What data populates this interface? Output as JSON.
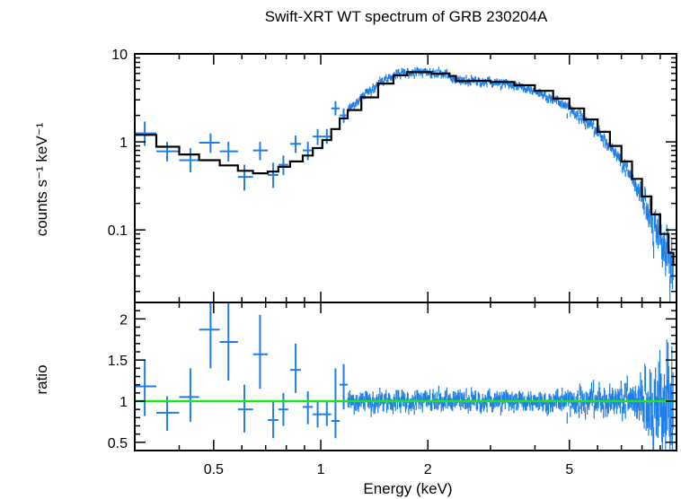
{
  "chart_data": [
    {
      "type": "scatter",
      "panel": "spectrum",
      "title": "Swift-XRT WT spectrum of GRB 230204A",
      "xlabel": "Energy (keV)",
      "ylabel": "counts s⁻¹ keV⁻¹",
      "x_scale": "log",
      "y_scale": "log",
      "xlim": [
        0.3,
        10
      ],
      "ylim": [
        0.015,
        10
      ],
      "x_ticks": [
        0.5,
        1,
        2,
        5
      ],
      "x_tick_labels": [
        "0.5",
        "1",
        "2",
        "5"
      ],
      "y_ticks": [
        0.1,
        1,
        10
      ],
      "y_tick_labels": [
        "0.1",
        "1",
        "10"
      ],
      "grid": false,
      "colors": {
        "data": "#1e7fe6",
        "model": "#000000"
      },
      "series": [
        {
          "style": "crosses",
          "points": [
            {
              "x": 0.32,
              "xlo": 0.3,
              "xhi": 0.345,
              "y": 1.25,
              "ylo": 0.9,
              "yhi": 1.7
            },
            {
              "x": 0.37,
              "xlo": 0.345,
              "xhi": 0.4,
              "y": 0.78,
              "ylo": 0.6,
              "yhi": 1.0
            },
            {
              "x": 0.43,
              "xlo": 0.4,
              "xhi": 0.455,
              "y": 0.62,
              "ylo": 0.45,
              "yhi": 0.85
            },
            {
              "x": 0.49,
              "xlo": 0.455,
              "xhi": 0.52,
              "y": 0.98,
              "ylo": 0.75,
              "yhi": 1.25
            },
            {
              "x": 0.55,
              "xlo": 0.52,
              "xhi": 0.585,
              "y": 0.78,
              "ylo": 0.6,
              "yhi": 1.0
            },
            {
              "x": 0.61,
              "xlo": 0.585,
              "xhi": 0.645,
              "y": 0.4,
              "ylo": 0.28,
              "yhi": 0.55
            },
            {
              "x": 0.675,
              "xlo": 0.645,
              "xhi": 0.71,
              "y": 0.8,
              "ylo": 0.62,
              "yhi": 1.0
            },
            {
              "x": 0.735,
              "xlo": 0.71,
              "xhi": 0.76,
              "y": 0.42,
              "ylo": 0.3,
              "yhi": 0.58
            },
            {
              "x": 0.785,
              "xlo": 0.76,
              "xhi": 0.81,
              "y": 0.55,
              "ylo": 0.42,
              "yhi": 0.7
            },
            {
              "x": 0.85,
              "xlo": 0.82,
              "xhi": 0.88,
              "y": 0.95,
              "ylo": 0.75,
              "yhi": 1.18
            },
            {
              "x": 0.92,
              "xlo": 0.89,
              "xhi": 0.95,
              "y": 0.8,
              "ylo": 0.62,
              "yhi": 1.0
            },
            {
              "x": 0.98,
              "xlo": 0.95,
              "xhi": 1.01,
              "y": 1.15,
              "ylo": 0.92,
              "yhi": 1.4
            },
            {
              "x": 1.04,
              "xlo": 1.01,
              "xhi": 1.07,
              "y": 1.15,
              "ylo": 0.95,
              "yhi": 1.4
            },
            {
              "x": 1.1,
              "xlo": 1.07,
              "xhi": 1.13,
              "y": 2.4,
              "ylo": 2.0,
              "yhi": 2.9
            },
            {
              "x": 1.16,
              "xlo": 1.13,
              "xhi": 1.19,
              "y": 2.0,
              "ylo": 1.65,
              "yhi": 2.4
            }
          ]
        },
        {
          "style": "dense-crosses",
          "note_values": "y values follow the fitted model from 1.19 to 9.8 keV with ~5% scatter",
          "x_range": [
            1.19,
            9.8
          ]
        }
      ],
      "model": {
        "style": "step",
        "points": [
          [
            0.3,
            1.2
          ],
          [
            0.345,
            0.88
          ],
          [
            0.4,
            0.72
          ],
          [
            0.455,
            0.62
          ],
          [
            0.52,
            0.54
          ],
          [
            0.585,
            0.47
          ],
          [
            0.645,
            0.44
          ],
          [
            0.71,
            0.46
          ],
          [
            0.76,
            0.52
          ],
          [
            0.82,
            0.6
          ],
          [
            0.89,
            0.7
          ],
          [
            0.95,
            0.85
          ],
          [
            1.01,
            1.05
          ],
          [
            1.07,
            1.4
          ],
          [
            1.13,
            1.85
          ],
          [
            1.19,
            2.3
          ],
          [
            1.3,
            3.2
          ],
          [
            1.45,
            4.6
          ],
          [
            1.6,
            5.7
          ],
          [
            1.75,
            6.2
          ],
          [
            1.9,
            6.2
          ],
          [
            2.05,
            5.95
          ],
          [
            2.2,
            6.0
          ],
          [
            2.3,
            5.6
          ],
          [
            2.4,
            4.9
          ],
          [
            2.6,
            4.95
          ],
          [
            3.0,
            4.8
          ],
          [
            3.5,
            4.4
          ],
          [
            4.0,
            3.8
          ],
          [
            4.5,
            3.1
          ],
          [
            5.0,
            2.4
          ],
          [
            5.5,
            1.8
          ],
          [
            6.0,
            1.3
          ],
          [
            6.5,
            0.9
          ],
          [
            7.0,
            0.6
          ],
          [
            7.5,
            0.38
          ],
          [
            8.0,
            0.24
          ],
          [
            8.5,
            0.15
          ],
          [
            9.0,
            0.09
          ],
          [
            9.5,
            0.055
          ],
          [
            9.8,
            0.04
          ],
          [
            10.0,
            0.03
          ]
        ]
      }
    },
    {
      "type": "scatter",
      "panel": "ratio",
      "xlabel": "Energy (keV)",
      "ylabel": "ratio",
      "x_scale": "log",
      "y_scale": "linear",
      "xlim": [
        0.3,
        10
      ],
      "ylim": [
        0.4,
        2.2
      ],
      "y_ticks": [
        0.5,
        1,
        1.5,
        2
      ],
      "y_tick_labels": [
        "0.5",
        "1",
        "1.5",
        "2"
      ],
      "reference_line": {
        "y": 1,
        "color": "#22e022"
      },
      "colors": {
        "data": "#1e7fe6"
      },
      "series": [
        {
          "style": "crosses",
          "points": [
            {
              "x": 0.32,
              "xlo": 0.3,
              "xhi": 0.345,
              "y": 1.18,
              "ylo": 0.82,
              "yhi": 1.5
            },
            {
              "x": 0.37,
              "xlo": 0.345,
              "xhi": 0.4,
              "y": 0.86,
              "ylo": 0.64,
              "yhi": 1.06
            },
            {
              "x": 0.43,
              "xlo": 0.4,
              "xhi": 0.455,
              "y": 1.05,
              "ylo": 0.75,
              "yhi": 1.4
            },
            {
              "x": 0.49,
              "xlo": 0.455,
              "xhi": 0.52,
              "y": 1.87,
              "ylo": 1.4,
              "yhi": 2.3
            },
            {
              "x": 0.55,
              "xlo": 0.52,
              "xhi": 0.585,
              "y": 1.72,
              "ylo": 1.25,
              "yhi": 2.2
            },
            {
              "x": 0.61,
              "xlo": 0.585,
              "xhi": 0.645,
              "y": 0.9,
              "ylo": 0.62,
              "yhi": 1.2
            },
            {
              "x": 0.675,
              "xlo": 0.645,
              "xhi": 0.71,
              "y": 1.57,
              "ylo": 1.15,
              "yhi": 2.05
            },
            {
              "x": 0.735,
              "xlo": 0.71,
              "xhi": 0.76,
              "y": 0.77,
              "ylo": 0.55,
              "yhi": 1.0
            },
            {
              "x": 0.785,
              "xlo": 0.76,
              "xhi": 0.81,
              "y": 0.9,
              "ylo": 0.7,
              "yhi": 1.1
            },
            {
              "x": 0.85,
              "xlo": 0.82,
              "xhi": 0.88,
              "y": 1.38,
              "ylo": 1.1,
              "yhi": 1.7
            },
            {
              "x": 0.92,
              "xlo": 0.89,
              "xhi": 0.95,
              "y": 0.93,
              "ylo": 0.72,
              "yhi": 1.12
            },
            {
              "x": 0.98,
              "xlo": 0.95,
              "xhi": 1.01,
              "y": 0.84,
              "ylo": 0.68,
              "yhi": 1.0
            },
            {
              "x": 1.04,
              "xlo": 1.01,
              "xhi": 1.07,
              "y": 0.84,
              "ylo": 0.7,
              "yhi": 1.0
            },
            {
              "x": 1.1,
              "xlo": 1.07,
              "xhi": 1.13,
              "y": 0.76,
              "ylo": 0.55,
              "yhi": 1.4
            },
            {
              "x": 1.16,
              "xlo": 1.13,
              "xhi": 1.19,
              "y": 1.2,
              "ylo": 0.9,
              "yhi": 1.45
            }
          ]
        },
        {
          "style": "dense-crosses",
          "x_range": [
            1.19,
            9.8
          ]
        }
      ]
    }
  ]
}
